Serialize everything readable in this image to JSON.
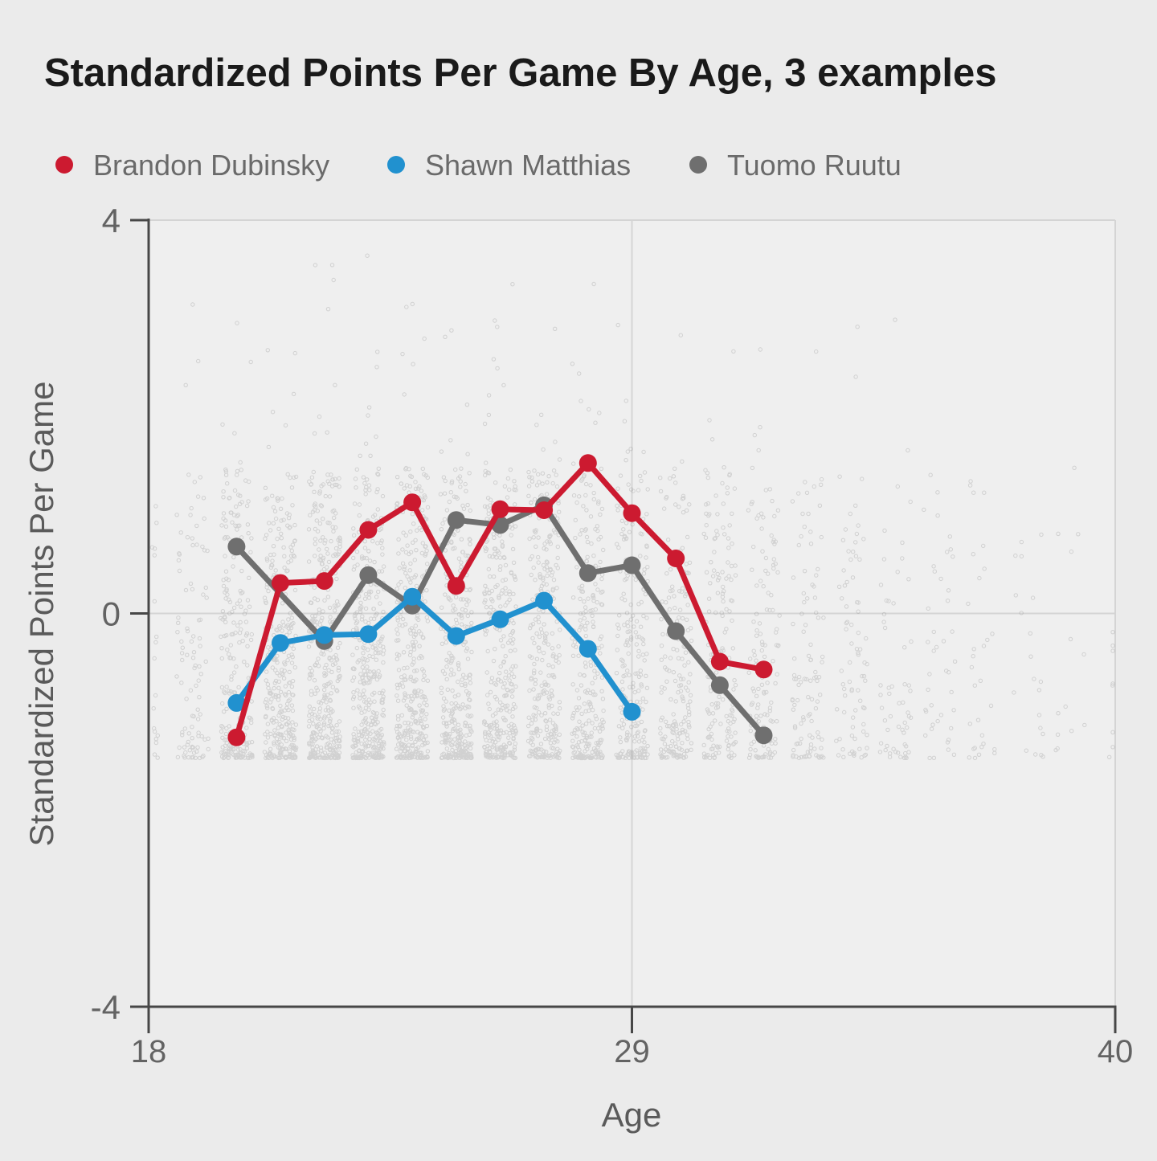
{
  "title": "Standardized Points Per Game By Age, 3 examples",
  "legend": {
    "items": [
      {
        "label": "Brandon Dubinsky",
        "color": "#cc1a30"
      },
      {
        "label": "Shawn Matthias",
        "color": "#2191cf"
      },
      {
        "label": "Tuomo Ruutu",
        "color": "#6f6f6f"
      }
    ]
  },
  "colors": {
    "background": "#ebebeb",
    "plot_background": "#efefef",
    "grid": "#d4d4d4",
    "axis": "#474747",
    "tick_label": "#636363",
    "axis_title": "#5a5a5a",
    "title": "#1a1a1a",
    "legend_text": "#6a6a6a",
    "scatter": "#787878"
  },
  "chart_data": {
    "type": "line",
    "title": "Standardized Points Per Game By Age, 3 examples",
    "xlabel": "Age",
    "ylabel": "Standardized Points Per Game",
    "xlim": [
      18,
      40
    ],
    "ylim": [
      -4,
      4
    ],
    "x_tick_values": [
      18,
      29,
      40
    ],
    "x_tick_labels": [
      "18",
      "29",
      "40"
    ],
    "y_tick_values": [
      4,
      0,
      -4
    ],
    "y_tick_labels": [
      "4",
      "0",
      "-4"
    ],
    "grid": {
      "h_lines_at": [
        4,
        0
      ],
      "v_lines_at": [
        29,
        40
      ],
      "legend_position": "top-left"
    },
    "series": [
      {
        "name": "Brandon Dubinsky",
        "color": "#cc1a30",
        "points": [
          [
            20,
            -1.26
          ],
          [
            21,
            0.31
          ],
          [
            22,
            0.33
          ],
          [
            23,
            0.85
          ],
          [
            24,
            1.13
          ],
          [
            25,
            0.28
          ],
          [
            26,
            1.06
          ],
          [
            27,
            1.05
          ],
          [
            28,
            1.53
          ],
          [
            29,
            1.02
          ],
          [
            30,
            0.56
          ],
          [
            31,
            -0.49
          ],
          [
            32,
            -0.57
          ]
        ]
      },
      {
        "name": "Shawn Matthias",
        "color": "#2191cf",
        "points": [
          [
            20,
            -0.91
          ],
          [
            21,
            -0.3
          ],
          [
            22,
            -0.22
          ],
          [
            23,
            -0.21
          ],
          [
            24,
            0.17
          ],
          [
            25,
            -0.23
          ],
          [
            26,
            -0.06
          ],
          [
            27,
            0.13
          ],
          [
            28,
            -0.36
          ],
          [
            29,
            -1.0
          ]
        ]
      },
      {
        "name": "Tuomo Ruutu",
        "color": "#6f6f6f",
        "points": [
          [
            20,
            0.68
          ],
          [
            22,
            -0.28
          ],
          [
            23,
            0.39
          ],
          [
            24,
            0.08
          ],
          [
            25,
            0.95
          ],
          [
            26,
            0.9
          ],
          [
            27,
            1.1
          ],
          [
            28,
            0.41
          ],
          [
            29,
            0.49
          ],
          [
            30,
            -0.18
          ],
          [
            31,
            -0.73
          ],
          [
            32,
            -1.24
          ]
        ]
      }
    ],
    "background_scatter": {
      "description": "jittered light-gray cloud of all player-seasons, one column per age, dense floor near -1.45, sparse tail up to about 3.8",
      "seed": 42,
      "dot_radius": 2.2,
      "x_jitter": 0.72,
      "value_floor": -1.47,
      "value_ceiling": 3.85,
      "opacity": 0.25,
      "ages": [
        18,
        19,
        20,
        21,
        22,
        23,
        24,
        25,
        26,
        27,
        28,
        29,
        30,
        31,
        32,
        33,
        34,
        35,
        36,
        37,
        38,
        39,
        40
      ],
      "counts": [
        18,
        100,
        240,
        330,
        370,
        390,
        380,
        355,
        330,
        300,
        268,
        235,
        200,
        165,
        135,
        105,
        80,
        58,
        42,
        30,
        20,
        13,
        8
      ]
    }
  }
}
